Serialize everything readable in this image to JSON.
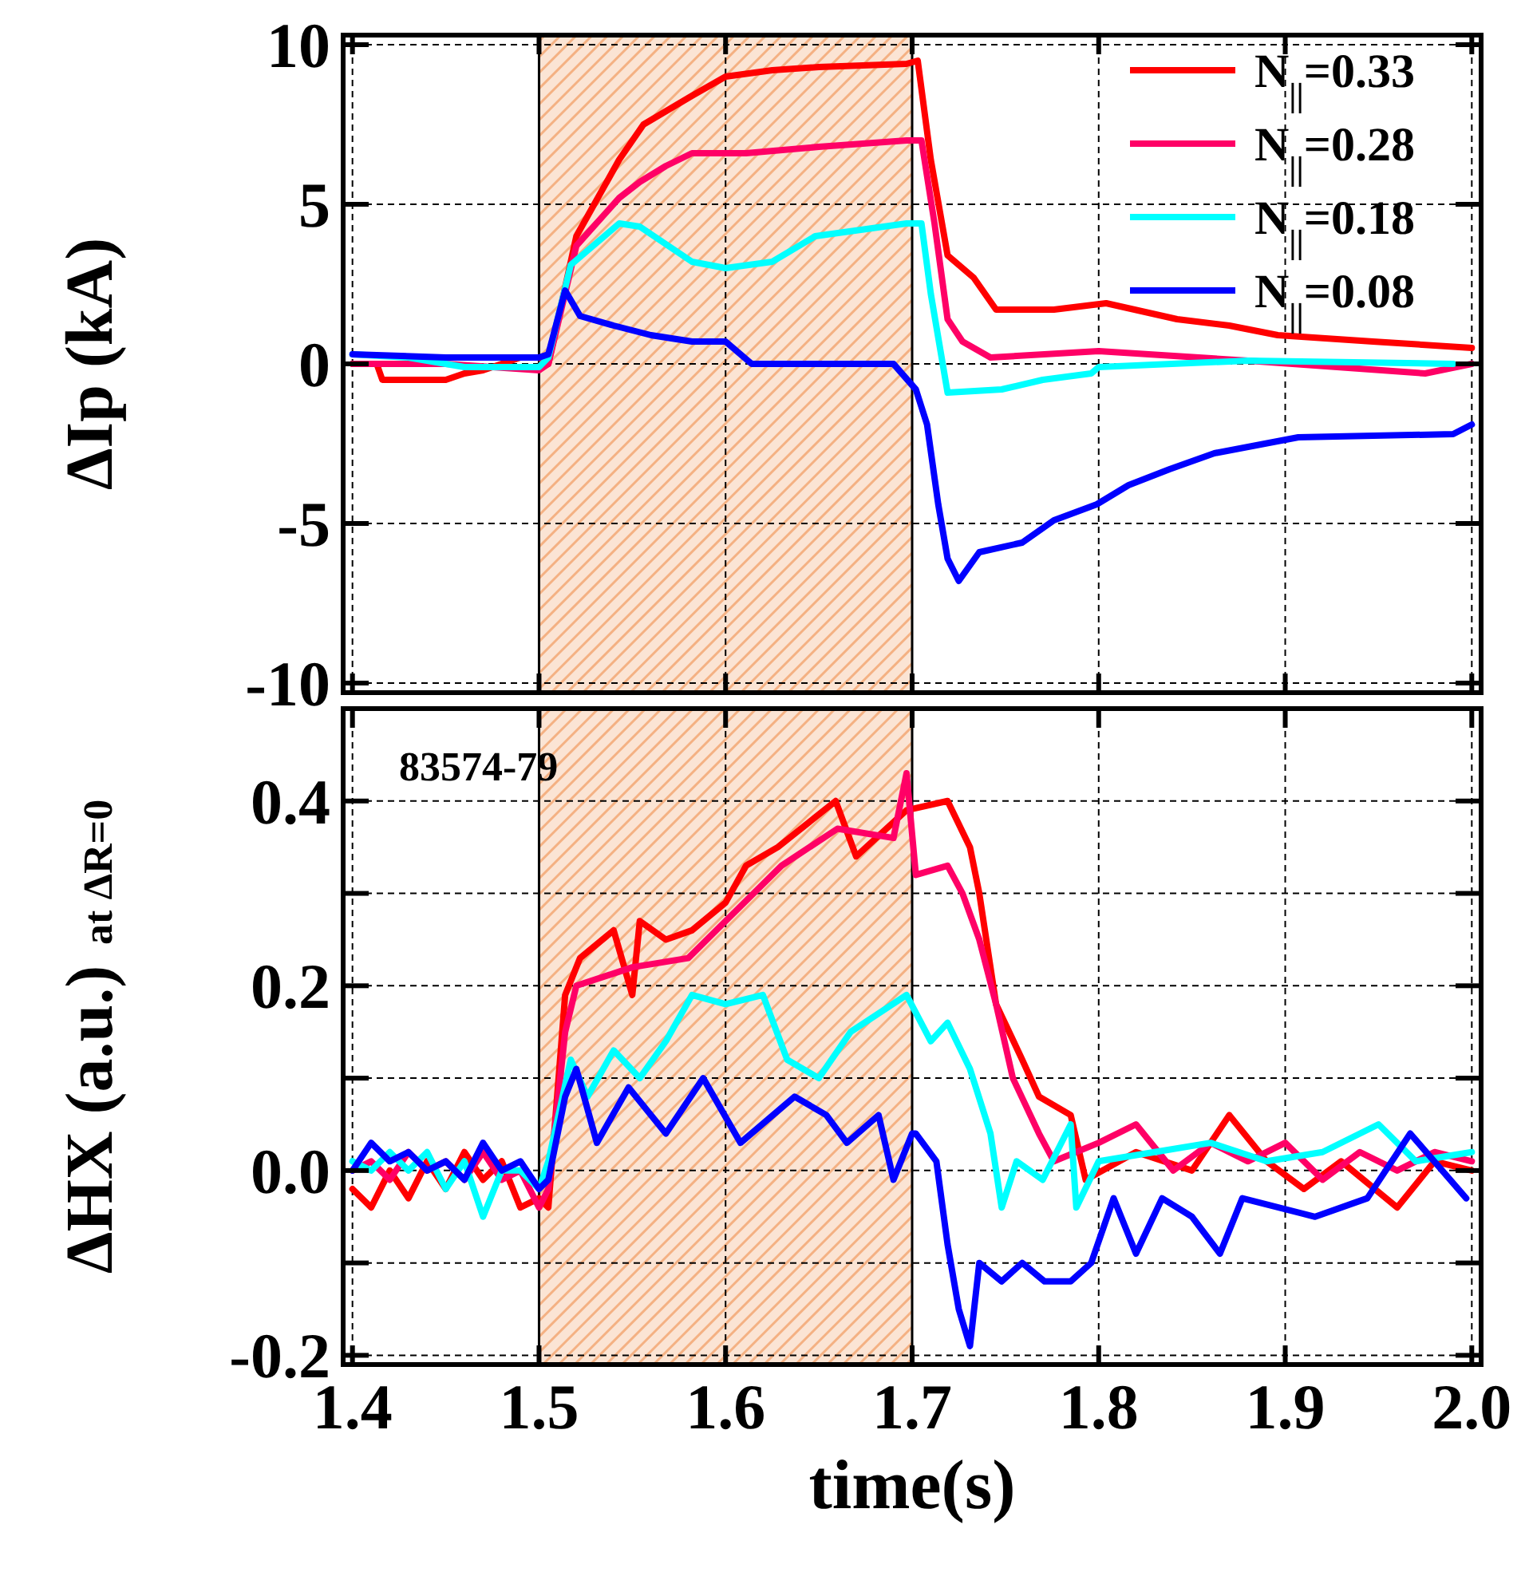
{
  "chart_data": [
    {
      "type": "line",
      "ylabel": "ΔIp (kA)",
      "xlim": [
        1.395,
        2.005
      ],
      "ylim": [
        -10.3,
        10.3
      ],
      "xticks": [
        1.4,
        1.5,
        1.6,
        1.7,
        1.8,
        1.9,
        2
      ],
      "yticks": [
        -10,
        -5,
        0,
        5,
        10
      ],
      "tick_labels": "y",
      "grid": true,
      "legend": "top right",
      "line_style": "solid",
      "bands": [
        {
          "axis": "x",
          "from": 1.5,
          "to": 1.7,
          "color": "#f4b183"
        }
      ],
      "series": [
        {
          "name": "N$_{||}$=0.33",
          "color": "#ff0000",
          "x": [
            1.4,
            1.413,
            1.416,
            1.45,
            1.46,
            1.47,
            1.49,
            1.5,
            1.505,
            1.52,
            1.543,
            1.556,
            1.582,
            1.6,
            1.625,
            1.65,
            1.697,
            1.703,
            1.71,
            1.719,
            1.733,
            1.745,
            1.776,
            1.804,
            1.842,
            1.87,
            1.896,
            1.947,
            2.0
          ],
          "values": [
            0,
            0,
            -0.5,
            -0.5,
            -0.3,
            -0.2,
            0.2,
            0.2,
            0,
            4.0,
            6.4,
            7.5,
            8.4,
            9.0,
            9.2,
            9.3,
            9.4,
            9.5,
            6.4,
            3.4,
            2.7,
            1.7,
            1.7,
            1.9,
            1.4,
            1.2,
            0.9,
            0.7,
            0.5
          ]
        },
        {
          "name": "N$_{||}$=0.28",
          "color": "#ff0066",
          "x": [
            1.4,
            1.45,
            1.5,
            1.505,
            1.52,
            1.543,
            1.554,
            1.568,
            1.582,
            1.611,
            1.65,
            1.697,
            1.705,
            1.712,
            1.719,
            1.727,
            1.742,
            1.8,
            1.88,
            1.975,
            2.0
          ],
          "values": [
            0,
            0,
            -0.2,
            0,
            3.7,
            5.2,
            5.7,
            6.2,
            6.6,
            6.6,
            6.8,
            7.0,
            7.0,
            4.4,
            1.4,
            0.7,
            0.2,
            0.4,
            0.1,
            -0.3,
            0.0
          ]
        },
        {
          "name": "N$_{||}$=0.18",
          "color": "#00ffff",
          "x": [
            1.4,
            1.43,
            1.46,
            1.5,
            1.505,
            1.517,
            1.543,
            1.554,
            1.582,
            1.6,
            1.625,
            1.648,
            1.697,
            1.705,
            1.71,
            1.719,
            1.748,
            1.77,
            1.796,
            1.8,
            1.88,
            1.99
          ],
          "values": [
            0.3,
            0.2,
            -0.1,
            -0.1,
            0.2,
            3.1,
            4.4,
            4.3,
            3.2,
            3.0,
            3.2,
            4.0,
            4.4,
            4.4,
            2.2,
            -0.9,
            -0.8,
            -0.5,
            -0.3,
            -0.1,
            0.1,
            0.0
          ]
        },
        {
          "name": "N$_{||}$=0.08",
          "color": "#0000ff",
          "x": [
            1.4,
            1.45,
            1.5,
            1.505,
            1.514,
            1.522,
            1.54,
            1.56,
            1.582,
            1.6,
            1.614,
            1.69,
            1.702,
            1.708,
            1.714,
            1.719,
            1.725,
            1.736,
            1.759,
            1.776,
            1.799,
            1.816,
            1.838,
            1.862,
            1.907,
            1.99,
            2.0
          ],
          "values": [
            0.3,
            0.2,
            0.2,
            0.3,
            2.3,
            1.5,
            1.2,
            0.9,
            0.7,
            0.7,
            0,
            0,
            -0.8,
            -1.9,
            -4.4,
            -6.1,
            -6.8,
            -5.9,
            -5.6,
            -4.9,
            -4.4,
            -3.8,
            -3.3,
            -2.8,
            -2.3,
            -2.2,
            -1.9
          ]
        }
      ]
    },
    {
      "type": "line",
      "xlabel": "time(s)",
      "ylabel": "ΔHX (a.u.)  at ΔR=0",
      "annotations": [
        "83574-79"
      ],
      "xlim": [
        1.395,
        2.005
      ],
      "ylim": [
        -0.21,
        0.5
      ],
      "xticks": [
        1.4,
        1.5,
        1.6,
        1.7,
        1.8,
        1.9,
        {
          "value": 2,
          "label": "2.0"
        }
      ],
      "yticks": [
        {
          "value": -0.2,
          "label": "-0.2"
        },
        {
          "value": -0.1,
          "label": null
        },
        {
          "value": 0,
          "label": "0.0"
        },
        {
          "value": 0.1,
          "label": null
        },
        {
          "value": 0.2,
          "label": "0.2"
        },
        {
          "value": 0.3,
          "label": null
        },
        {
          "value": 0.4,
          "label": "0.4"
        },
        {
          "value": 0.5,
          "label": null
        }
      ],
      "grid": true,
      "line_style": "solid",
      "bands": [
        {
          "axis": "x",
          "from": 1.5,
          "to": 1.7,
          "color": "#f4b183"
        }
      ],
      "series": [
        {
          "color": "#ff0000",
          "x": [
            1.4,
            1.41,
            1.42,
            1.43,
            1.44,
            1.45,
            1.46,
            1.47,
            1.48,
            1.49,
            1.5,
            1.505,
            1.514,
            1.522,
            1.54,
            1.55,
            1.554,
            1.568,
            1.582,
            1.6,
            1.611,
            1.628,
            1.659,
            1.67,
            1.697,
            1.719,
            1.731,
            1.736,
            1.745,
            1.759,
            1.768,
            1.785,
            1.793,
            1.82,
            1.85,
            1.87,
            1.89,
            1.91,
            1.93,
            1.96,
            1.98,
            2.0
          ],
          "values": [
            -0.02,
            -0.04,
            0.0,
            -0.03,
            0.01,
            -0.02,
            0.02,
            -0.01,
            0.01,
            -0.04,
            -0.03,
            -0.04,
            0.19,
            0.23,
            0.26,
            0.19,
            0.27,
            0.25,
            0.26,
            0.29,
            0.33,
            0.35,
            0.4,
            0.34,
            0.39,
            0.4,
            0.35,
            0.3,
            0.18,
            0.12,
            0.08,
            0.06,
            -0.01,
            0.02,
            0.0,
            0.06,
            0.01,
            -0.02,
            0.01,
            -0.04,
            0.01,
            0.0
          ]
        },
        {
          "color": "#ff0066",
          "x": [
            1.4,
            1.41,
            1.42,
            1.43,
            1.44,
            1.45,
            1.46,
            1.47,
            1.48,
            1.49,
            1.5,
            1.505,
            1.514,
            1.52,
            1.55,
            1.58,
            1.6,
            1.63,
            1.66,
            1.69,
            1.697,
            1.702,
            1.719,
            1.727,
            1.736,
            1.745,
            1.754,
            1.768,
            1.776,
            1.8,
            1.82,
            1.84,
            1.86,
            1.88,
            1.9,
            1.92,
            1.94,
            1.96,
            1.98,
            2.0
          ],
          "values": [
            0.0,
            0.01,
            -0.01,
            0.02,
            0.0,
            0.01,
            -0.01,
            0.02,
            -0.01,
            0.0,
            -0.04,
            -0.02,
            0.15,
            0.2,
            0.22,
            0.23,
            0.27,
            0.33,
            0.37,
            0.36,
            0.43,
            0.32,
            0.33,
            0.3,
            0.25,
            0.18,
            0.1,
            0.04,
            0.01,
            0.03,
            0.05,
            0.0,
            0.03,
            0.01,
            0.03,
            -0.01,
            0.02,
            0.0,
            0.02,
            0.01
          ]
        },
        {
          "color": "#00ffff",
          "x": [
            1.4,
            1.41,
            1.42,
            1.43,
            1.44,
            1.45,
            1.46,
            1.47,
            1.48,
            1.49,
            1.5,
            1.505,
            1.517,
            1.526,
            1.54,
            1.554,
            1.568,
            1.582,
            1.6,
            1.62,
            1.633,
            1.65,
            1.667,
            1.697,
            1.71,
            1.719,
            1.731,
            1.742,
            1.748,
            1.756,
            1.77,
            1.785,
            1.788,
            1.8,
            1.83,
            1.86,
            1.89,
            1.92,
            1.95,
            1.97,
            2.0
          ],
          "values": [
            0.01,
            0.0,
            0.02,
            0.0,
            0.02,
            -0.02,
            0.01,
            -0.05,
            0.0,
            0.0,
            -0.02,
            0.01,
            0.12,
            0.08,
            0.13,
            0.1,
            0.14,
            0.19,
            0.18,
            0.19,
            0.12,
            0.1,
            0.15,
            0.19,
            0.14,
            0.16,
            0.11,
            0.04,
            -0.04,
            0.01,
            -0.01,
            0.05,
            -0.04,
            0.01,
            0.02,
            0.03,
            0.01,
            0.02,
            0.05,
            0.01,
            0.02
          ]
        },
        {
          "color": "#0000ff",
          "x": [
            1.4,
            1.41,
            1.42,
            1.43,
            1.44,
            1.45,
            1.46,
            1.47,
            1.48,
            1.49,
            1.5,
            1.505,
            1.514,
            1.52,
            1.531,
            1.548,
            1.568,
            1.588,
            1.608,
            1.637,
            1.654,
            1.665,
            1.682,
            1.69,
            1.7,
            1.702,
            1.713,
            1.719,
            1.725,
            1.731,
            1.736,
            1.748,
            1.759,
            1.771,
            1.785,
            1.796,
            1.808,
            1.82,
            1.834,
            1.85,
            1.865,
            1.877,
            1.916,
            1.944,
            1.967,
            1.997
          ],
          "values": [
            0.0,
            0.03,
            0.01,
            0.02,
            0.0,
            0.01,
            -0.01,
            0.03,
            0.0,
            0.01,
            -0.02,
            -0.01,
            0.08,
            0.11,
            0.03,
            0.09,
            0.04,
            0.1,
            0.03,
            0.08,
            0.06,
            0.03,
            0.06,
            -0.01,
            0.04,
            0.04,
            0.01,
            -0.08,
            -0.15,
            -0.19,
            -0.1,
            -0.12,
            -0.1,
            -0.12,
            -0.12,
            -0.1,
            -0.03,
            -0.09,
            -0.03,
            -0.05,
            -0.09,
            -0.03,
            -0.05,
            -0.03,
            0.04,
            -0.03
          ]
        }
      ]
    }
  ]
}
